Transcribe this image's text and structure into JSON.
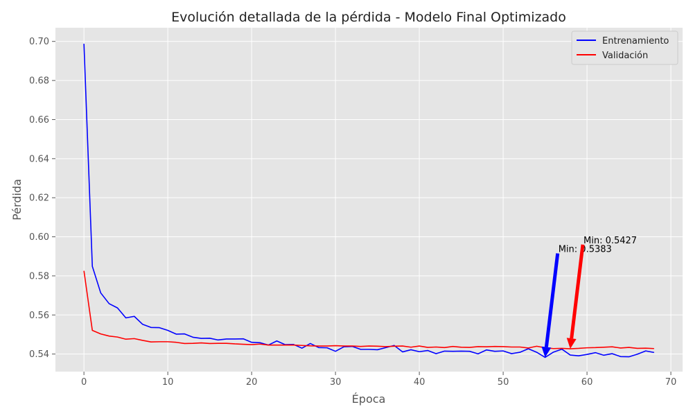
{
  "chart_data": {
    "type": "line",
    "title": "Evolución detallada de la pérdida - Modelo Final Optimizado",
    "xlabel": "Época",
    "ylabel": "Pérdida",
    "xlim": [
      -3.4,
      71.4
    ],
    "ylim": [
      0.531,
      0.707
    ],
    "xticks": [
      0,
      10,
      20,
      30,
      40,
      50,
      60,
      70
    ],
    "yticks": [
      0.54,
      0.56,
      0.58,
      0.6,
      0.62,
      0.64,
      0.66,
      0.68,
      0.7
    ],
    "xtick_labels": [
      "0",
      "10",
      "20",
      "30",
      "40",
      "50",
      "60",
      "70"
    ],
    "ytick_labels": [
      "0.54",
      "0.56",
      "0.58",
      "0.60",
      "0.62",
      "0.64",
      "0.66",
      "0.68",
      "0.70"
    ],
    "grid": true,
    "legend_position": "top-right",
    "series": [
      {
        "name": "Entrenamiento",
        "color": "#0000ff",
        "values": [
          0.6988,
          0.5849,
          0.5713,
          0.5658,
          0.5636,
          0.5585,
          0.5593,
          0.5552,
          0.5536,
          0.5535,
          0.5521,
          0.5502,
          0.5503,
          0.5486,
          0.548,
          0.5481,
          0.5472,
          0.5477,
          0.5477,
          0.5478,
          0.546,
          0.5458,
          0.5446,
          0.5467,
          0.5448,
          0.5449,
          0.543,
          0.5454,
          0.5433,
          0.5432,
          0.5414,
          0.5437,
          0.5439,
          0.5424,
          0.5424,
          0.5422,
          0.5433,
          0.5444,
          0.5411,
          0.5422,
          0.5412,
          0.5418,
          0.5402,
          0.5415,
          0.5414,
          0.5415,
          0.5414,
          0.5401,
          0.5421,
          0.5414,
          0.5416,
          0.5402,
          0.5409,
          0.5427,
          0.5409,
          0.5383,
          0.541,
          0.5425,
          0.5395,
          0.5391,
          0.5398,
          0.5407,
          0.5394,
          0.5402,
          0.5387,
          0.5386,
          0.5399,
          0.5416,
          0.5408
        ]
      },
      {
        "name": "Validación",
        "color": "#ff0000",
        "values": [
          0.5826,
          0.5521,
          0.5503,
          0.5492,
          0.5487,
          0.5476,
          0.5479,
          0.547,
          0.5462,
          0.5463,
          0.5463,
          0.546,
          0.5454,
          0.5455,
          0.5457,
          0.5454,
          0.5455,
          0.5455,
          0.5452,
          0.545,
          0.5448,
          0.5451,
          0.5446,
          0.5446,
          0.5446,
          0.5446,
          0.5444,
          0.5442,
          0.5441,
          0.5441,
          0.5443,
          0.5441,
          0.5441,
          0.5439,
          0.5441,
          0.544,
          0.5438,
          0.544,
          0.5441,
          0.5435,
          0.5441,
          0.5434,
          0.5436,
          0.5433,
          0.5439,
          0.5435,
          0.5434,
          0.5438,
          0.5437,
          0.5439,
          0.5438,
          0.5436,
          0.5436,
          0.5431,
          0.544,
          0.5432,
          0.5428,
          0.5429,
          0.5427,
          0.5429,
          0.5432,
          0.5433,
          0.5435,
          0.5437,
          0.5431,
          0.5434,
          0.5429,
          0.543,
          0.5428
        ]
      }
    ],
    "annotations": [
      {
        "text": "Min: 0.5383",
        "color": "#0000ff",
        "point": [
          55,
          0.5383
        ],
        "text_pos": [
          56.5,
          0.5915
        ]
      },
      {
        "text": "Min: 0.5427",
        "color": "#ff0000",
        "point": [
          58,
          0.5427
        ],
        "text_pos": [
          59.5,
          0.596
        ]
      }
    ]
  }
}
